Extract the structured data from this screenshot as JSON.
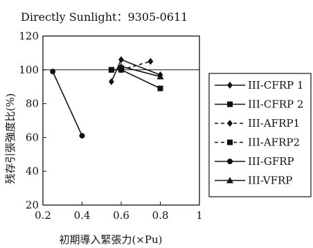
{
  "chart_data": {
    "type": "line",
    "title": "Directly Sunlight：9305-0611",
    "xlabel": "初期導入緊張力(×Pu)",
    "ylabel": "残存引張強度比(%)",
    "xlim": [
      0.2,
      1.0
    ],
    "ylim": [
      20,
      120
    ],
    "xticks": [
      "0.2",
      "0.4",
      "0.6",
      "0.8",
      "1"
    ],
    "yticks": [
      "20",
      "40",
      "60",
      "80",
      "100",
      "120"
    ],
    "reference_line_y": 100,
    "grid": false,
    "legend_position": "right",
    "series": [
      {
        "name": "III-CFRP 1",
        "marker": "diamond",
        "line": "solid",
        "x": [
          0.55,
          0.6,
          0.8
        ],
        "y": [
          93,
          106,
          97
        ]
      },
      {
        "name": "III-CFRP 2",
        "marker": "square",
        "line": "solid",
        "x": [
          0.55,
          0.6,
          0.8
        ],
        "y": [
          100,
          100,
          89
        ]
      },
      {
        "name": "III-AFRP1",
        "marker": "diamond",
        "line": "dashed",
        "x": [
          0.6,
          0.75
        ],
        "y": [
          100,
          105
        ]
      },
      {
        "name": "III-AFRP2",
        "marker": "square",
        "line": "dashed",
        "x": [
          0.55,
          0.6
        ],
        "y": [
          100,
          101
        ]
      },
      {
        "name": "III-GFRP",
        "marker": "circle",
        "line": "solid",
        "x": [
          0.25,
          0.4
        ],
        "y": [
          99,
          61
        ]
      },
      {
        "name": "III-VFRP",
        "marker": "triangle",
        "line": "solid",
        "x": [
          0.6,
          0.8
        ],
        "y": [
          102,
          96
        ]
      }
    ]
  }
}
